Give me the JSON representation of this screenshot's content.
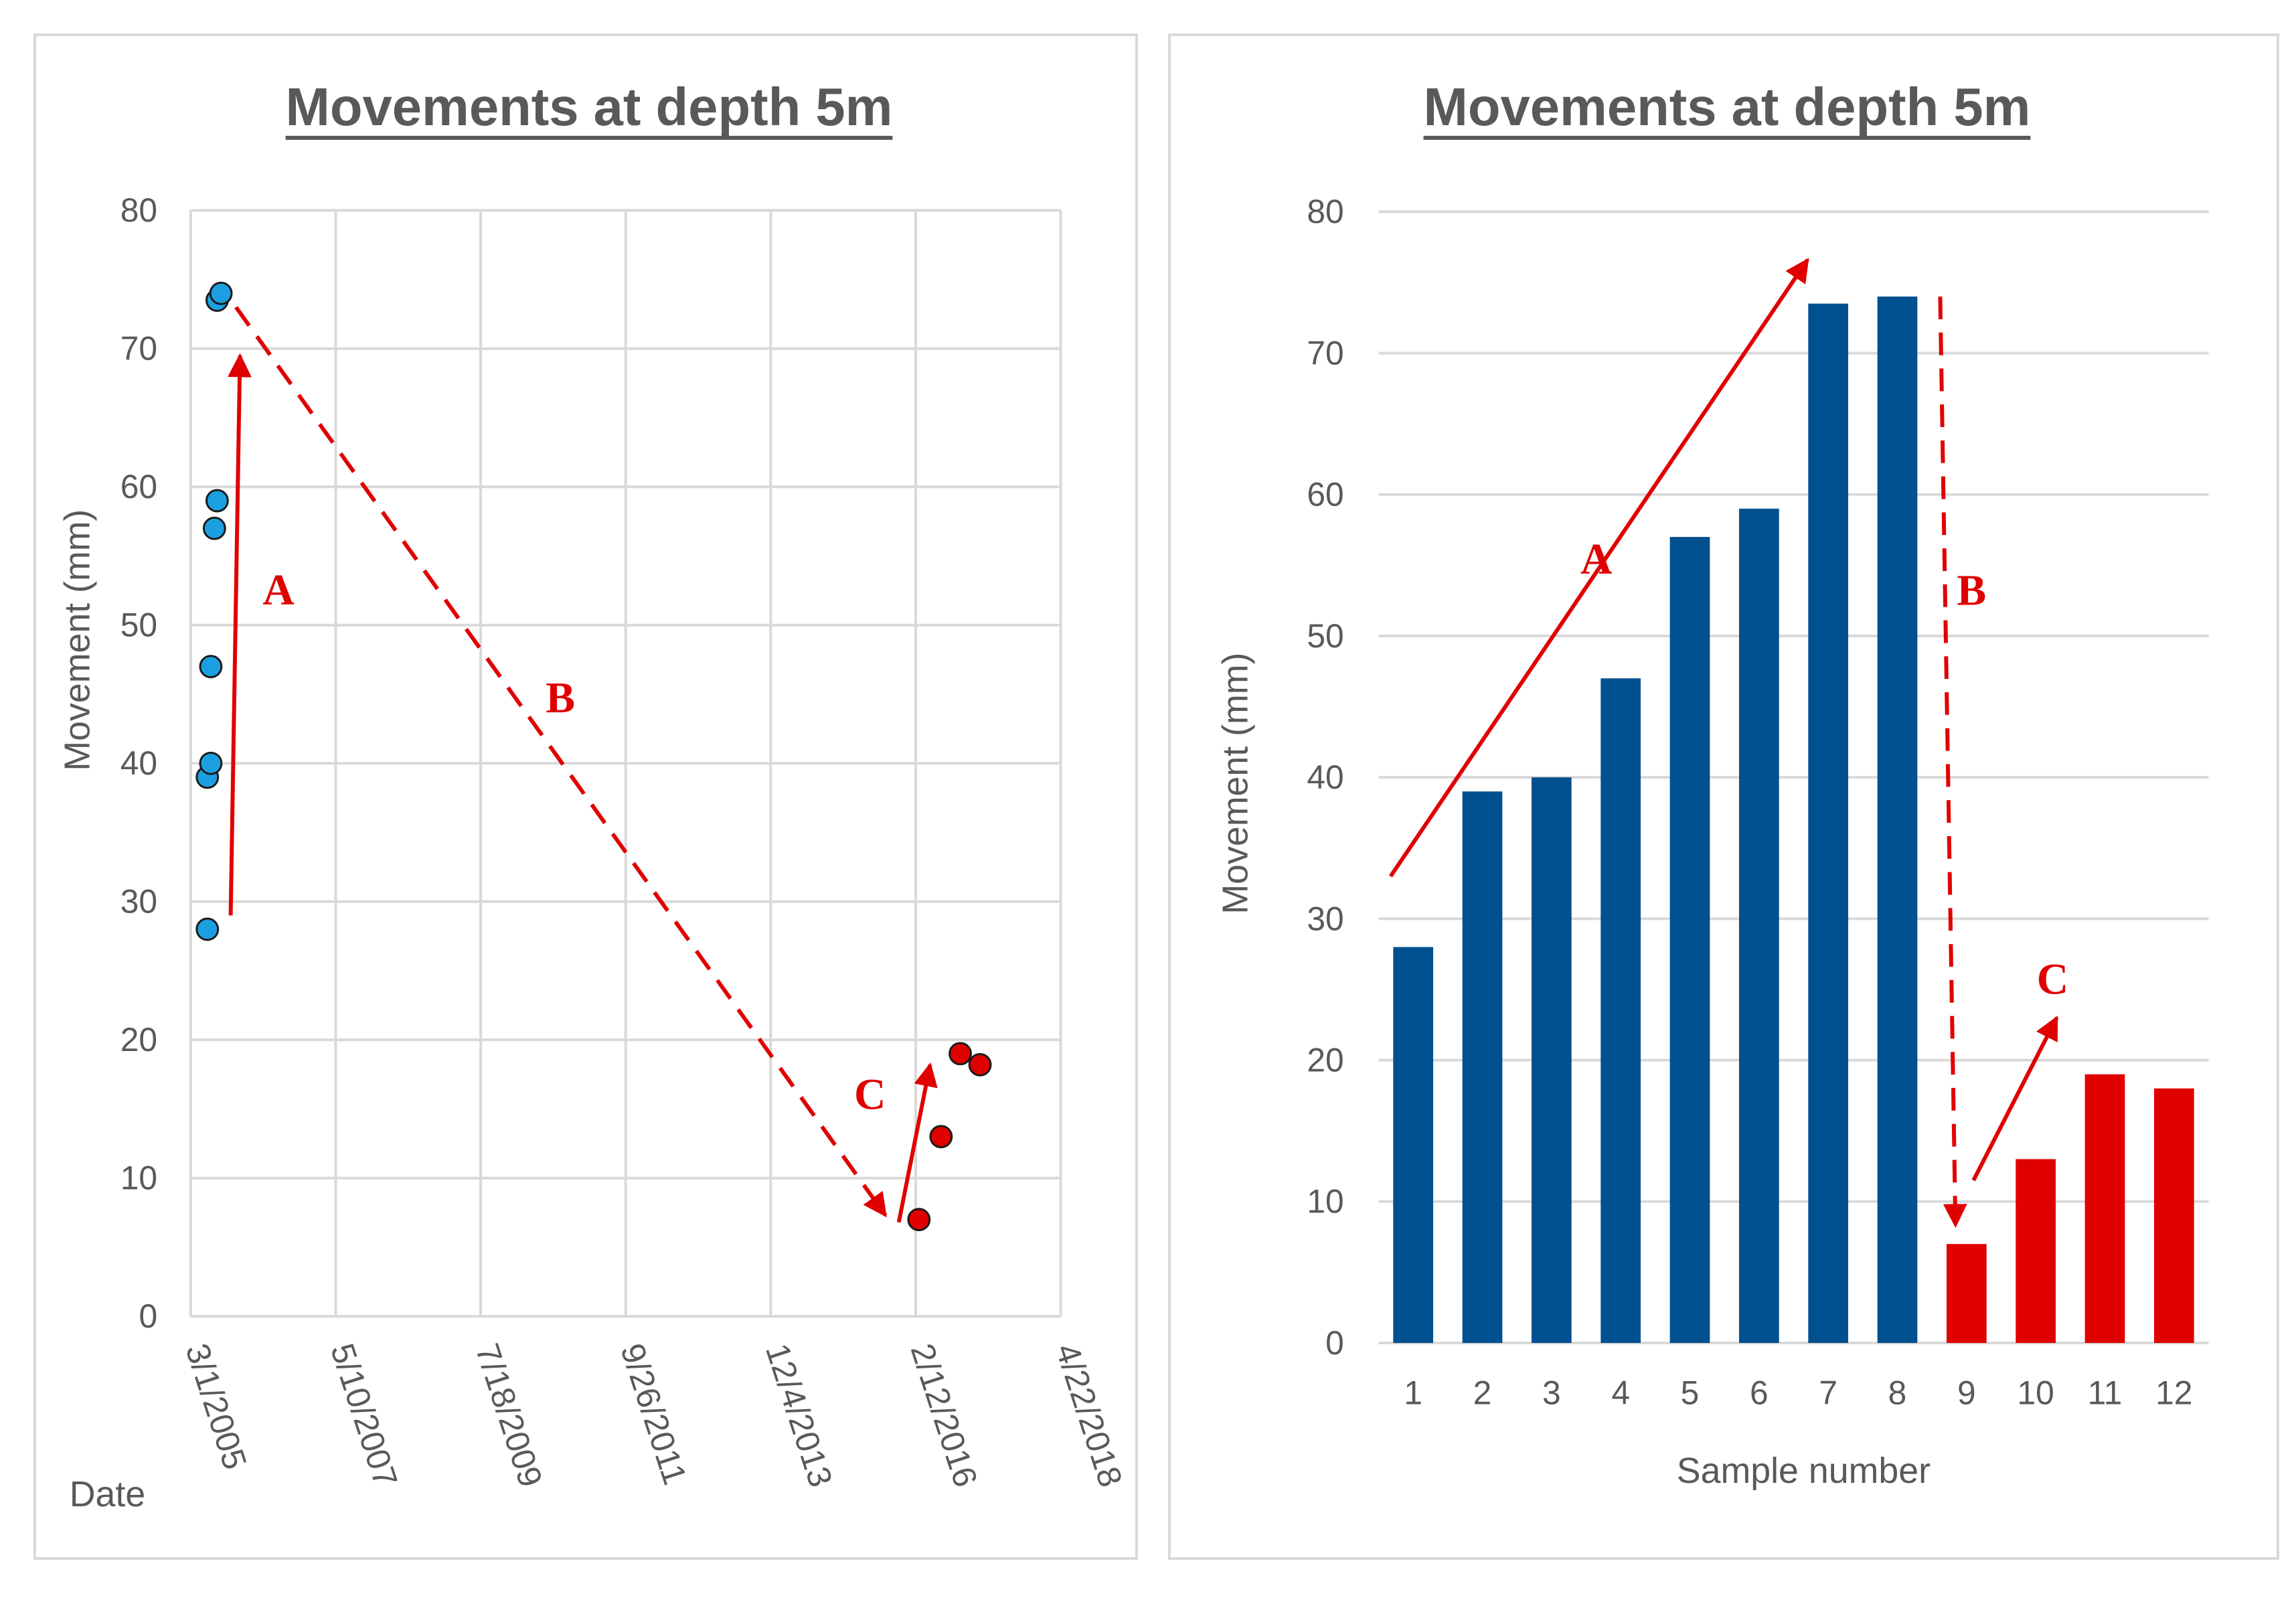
{
  "chart_data": [
    {
      "type": "scatter",
      "title": "Movements at depth 5m",
      "xlabel": "Date",
      "ylabel": "Movement (mm)",
      "xlim": [
        "3/1/2005",
        "4/22/2018"
      ],
      "ylim": [
        0,
        80
      ],
      "x_ticks": [
        "3/1/2005",
        "5/10/2007",
        "7/18/2009",
        "9/26/2011",
        "12/4/2013",
        "2/12/2016",
        "4/22/2018"
      ],
      "y_ticks": [
        0,
        10,
        20,
        30,
        40,
        50,
        60,
        70,
        80
      ],
      "grid": true,
      "series": [
        {
          "color": "#1aa0e0",
          "points": [
            {
              "x": "2005-06-01",
              "y": 28
            },
            {
              "x": "2005-06-01",
              "y": 39
            },
            {
              "x": "2005-06-20",
              "y": 40
            },
            {
              "x": "2005-06-20",
              "y": 47
            },
            {
              "x": "2005-07-10",
              "y": 57
            },
            {
              "x": "2005-07-25",
              "y": 59
            },
            {
              "x": "2005-07-25",
              "y": 73.5
            },
            {
              "x": "2005-08-15",
              "y": 74
            }
          ]
        },
        {
          "color": "#e00000",
          "points": [
            {
              "x": "2016-03-01",
              "y": 7
            },
            {
              "x": "2016-07-01",
              "y": 13
            },
            {
              "x": "2016-10-15",
              "y": 19
            },
            {
              "x": "2017-02-01",
              "y": 18.2
            }
          ]
        }
      ],
      "annotations": [
        "A",
        "B",
        "C"
      ]
    },
    {
      "type": "bar",
      "title": "Movements at depth 5m",
      "xlabel": "Sample number",
      "ylabel": "Movement (mm)",
      "ylim": [
        0,
        80
      ],
      "y_ticks": [
        0,
        10,
        20,
        30,
        40,
        50,
        60,
        70,
        80
      ],
      "grid": true,
      "categories": [
        "1",
        "2",
        "3",
        "4",
        "5",
        "6",
        "7",
        "8",
        "9",
        "10",
        "11",
        "12"
      ],
      "values": [
        28,
        39,
        40,
        47,
        57,
        59,
        73.5,
        74,
        7,
        13,
        19,
        18
      ],
      "bar_colors": [
        "#00508f",
        "#00508f",
        "#00508f",
        "#00508f",
        "#00508f",
        "#00508f",
        "#00508f",
        "#00508f",
        "#e00000",
        "#e00000",
        "#e00000",
        "#e00000"
      ],
      "annotations": [
        "A",
        "B",
        "C"
      ]
    }
  ]
}
